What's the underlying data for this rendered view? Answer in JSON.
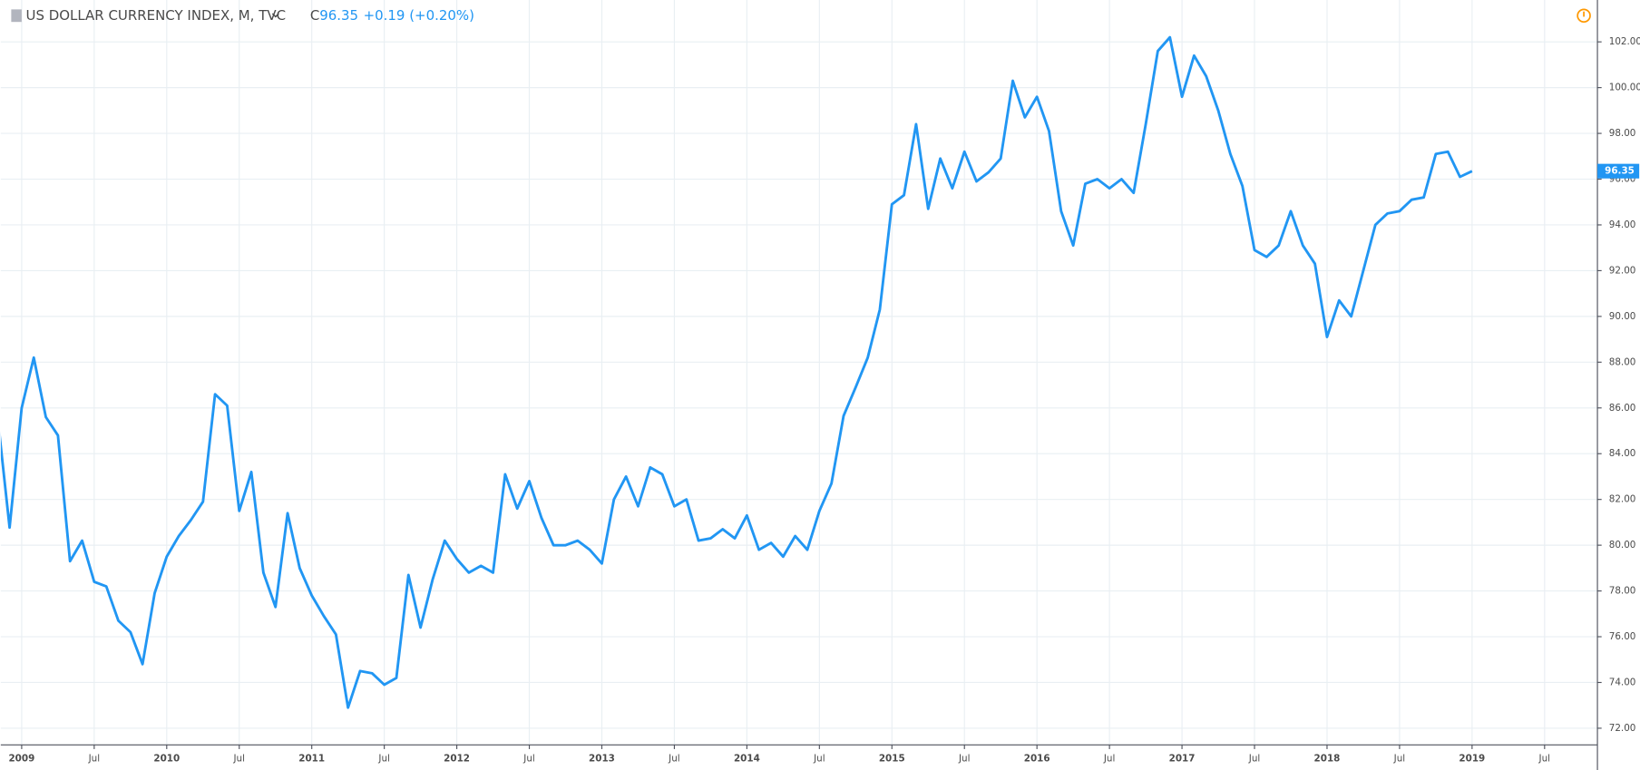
{
  "header": {
    "symbol": "US DOLLAR CURRENCY INDEX, M, TVC",
    "close_label": "C",
    "change": "+0.19 (+0.20%)"
  },
  "chart_data": {
    "type": "line",
    "x": [
      "2008-11",
      "2008-12",
      "2009-01",
      "2009-02",
      "2009-03",
      "2009-04",
      "2009-05",
      "2009-06",
      "2009-07",
      "2009-08",
      "2009-09",
      "2009-10",
      "2009-11",
      "2009-12",
      "2010-01",
      "2010-02",
      "2010-03",
      "2010-04",
      "2010-05",
      "2010-06",
      "2010-07",
      "2010-08",
      "2010-09",
      "2010-10",
      "2010-11",
      "2010-12",
      "2011-01",
      "2011-02",
      "2011-03",
      "2011-04",
      "2011-05",
      "2011-06",
      "2011-07",
      "2011-08",
      "2011-09",
      "2011-10",
      "2011-11",
      "2011-12",
      "2012-01",
      "2012-02",
      "2012-03",
      "2012-04",
      "2012-05",
      "2012-06",
      "2012-07",
      "2012-08",
      "2012-09",
      "2012-10",
      "2012-11",
      "2012-12",
      "2013-01",
      "2013-02",
      "2013-03",
      "2013-04",
      "2013-05",
      "2013-06",
      "2013-07",
      "2013-08",
      "2013-09",
      "2013-10",
      "2013-11",
      "2013-12",
      "2014-01",
      "2014-02",
      "2014-03",
      "2014-04",
      "2014-05",
      "2014-06",
      "2014-07",
      "2014-08",
      "2014-09",
      "2014-10",
      "2014-11",
      "2014-12",
      "2015-01",
      "2015-02",
      "2015-03",
      "2015-04",
      "2015-05",
      "2015-06",
      "2015-07",
      "2015-08",
      "2015-09",
      "2015-10",
      "2015-11",
      "2015-12",
      "2016-01",
      "2016-02",
      "2016-03",
      "2016-04",
      "2016-05",
      "2016-06",
      "2016-07",
      "2016-08",
      "2016-09",
      "2016-10",
      "2016-11",
      "2016-12",
      "2017-01",
      "2017-02",
      "2017-03",
      "2017-04",
      "2017-05",
      "2017-06",
      "2017-07",
      "2017-08",
      "2017-09",
      "2017-10",
      "2017-11",
      "2017-12",
      "2018-01",
      "2018-02",
      "2018-03",
      "2018-04",
      "2018-05",
      "2018-06",
      "2018-07",
      "2018-08",
      "2018-09",
      "2018-10",
      "2018-11",
      "2018-12",
      "2019-01"
    ],
    "series": [
      {
        "name": "US DOLLAR CURRENCY INDEX",
        "color": "#2196f3",
        "values": [
          85.65,
          80.77,
          86.0,
          88.2,
          85.6,
          84.8,
          79.3,
          80.2,
          78.4,
          78.2,
          76.7,
          76.2,
          74.8,
          77.9,
          79.5,
          80.4,
          81.1,
          81.9,
          86.6,
          86.1,
          81.5,
          83.2,
          78.8,
          77.3,
          81.4,
          79.0,
          77.8,
          76.9,
          76.1,
          72.9,
          74.5,
          74.4,
          73.9,
          74.2,
          78.7,
          76.4,
          78.5,
          80.2,
          79.4,
          78.8,
          79.1,
          78.8,
          83.1,
          81.6,
          82.8,
          81.2,
          80.0,
          80.0,
          80.2,
          79.8,
          79.2,
          82.0,
          83.0,
          81.7,
          83.4,
          83.1,
          81.7,
          82.0,
          80.2,
          80.3,
          80.7,
          80.3,
          81.3,
          79.8,
          80.1,
          79.5,
          80.4,
          79.8,
          81.5,
          82.7,
          85.65,
          86.9,
          88.2,
          90.3,
          94.9,
          95.3,
          98.4,
          94.7,
          96.9,
          95.6,
          97.2,
          95.9,
          96.3,
          96.9,
          100.3,
          98.7,
          99.6,
          98.1,
          94.6,
          93.1,
          95.8,
          96.0,
          95.6,
          96.0,
          95.4,
          98.4,
          101.6,
          102.2,
          99.6,
          101.4,
          100.5,
          99.0,
          97.1,
          95.7,
          92.9,
          92.6,
          93.1,
          94.6,
          93.1,
          92.3,
          89.1,
          90.7,
          90.0,
          92.0,
          94.0,
          94.5,
          94.6,
          95.1,
          95.2,
          97.1,
          97.2,
          96.1,
          96.35
        ]
      }
    ],
    "xlim": [
      "2008-11",
      "2019-11"
    ],
    "xticks": [
      {
        "value": "2009-01",
        "label": "2009"
      },
      {
        "value": "2009-07",
        "label": "Jul"
      },
      {
        "value": "2010-01",
        "label": "2010"
      },
      {
        "value": "2010-07",
        "label": "Jul"
      },
      {
        "value": "2011-01",
        "label": "2011"
      },
      {
        "value": "2011-07",
        "label": "Jul"
      },
      {
        "value": "2012-01",
        "label": "2012"
      },
      {
        "value": "2012-07",
        "label": "Jul"
      },
      {
        "value": "2013-01",
        "label": "2013"
      },
      {
        "value": "2013-07",
        "label": "Jul"
      },
      {
        "value": "2014-01",
        "label": "2014"
      },
      {
        "value": "2014-07",
        "label": "Jul"
      },
      {
        "value": "2015-01",
        "label": "2015"
      },
      {
        "value": "2015-07",
        "label": "Jul"
      },
      {
        "value": "2016-01",
        "label": "2016"
      },
      {
        "value": "2016-07",
        "label": "Jul"
      },
      {
        "value": "2017-01",
        "label": "2017"
      },
      {
        "value": "2017-07",
        "label": "Jul"
      },
      {
        "value": "2018-01",
        "label": "2018"
      },
      {
        "value": "2018-07",
        "label": "Jul"
      },
      {
        "value": "2019-01",
        "label": "2019"
      },
      {
        "value": "2019-07",
        "label": "Jul"
      }
    ],
    "ylim": [
      71.27,
      103.83
    ],
    "yticks": [
      {
        "value": 72,
        "label": "72.00"
      },
      {
        "value": 74,
        "label": "74.00"
      },
      {
        "value": 76,
        "label": "76.00"
      },
      {
        "value": 78,
        "label": "78.00"
      },
      {
        "value": 80,
        "label": "80.00"
      },
      {
        "value": 82,
        "label": "82.00"
      },
      {
        "value": 84,
        "label": "84.00"
      },
      {
        "value": 86,
        "label": "86.00"
      },
      {
        "value": 88,
        "label": "88.00"
      },
      {
        "value": 90,
        "label": "90.00"
      },
      {
        "value": 92,
        "label": "92.00"
      },
      {
        "value": 94,
        "label": "94.00"
      },
      {
        "value": 96,
        "label": "96.00"
      },
      {
        "value": 98,
        "label": "98.00"
      },
      {
        "value": 100,
        "label": "100.00"
      },
      {
        "value": 102,
        "label": "102.00"
      }
    ],
    "grid": true
  }
}
